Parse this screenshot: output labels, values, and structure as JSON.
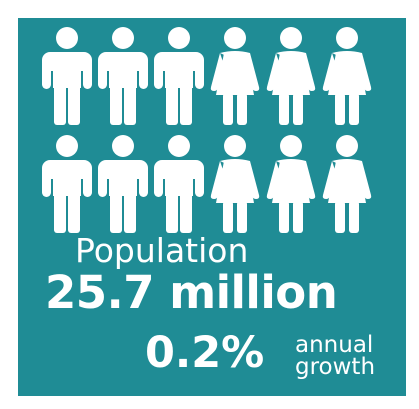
{
  "icons": {
    "rows": [
      [
        "male-figure-icon",
        "male-figure-icon",
        "male-figure-icon",
        "female-figure-icon",
        "female-figure-icon",
        "female-figure-icon"
      ],
      [
        "male-figure-icon",
        "male-figure-icon",
        "male-figure-icon",
        "female-figure-icon",
        "female-figure-icon",
        "female-figure-icon"
      ]
    ]
  },
  "colors": {
    "background": "#1f8c95",
    "foreground": "#ffffff"
  },
  "stats": {
    "label": "Population",
    "value": "25.7 million",
    "growth_value": "0.2%",
    "growth_caption_line1": "annual",
    "growth_caption_line2": "growth"
  }
}
